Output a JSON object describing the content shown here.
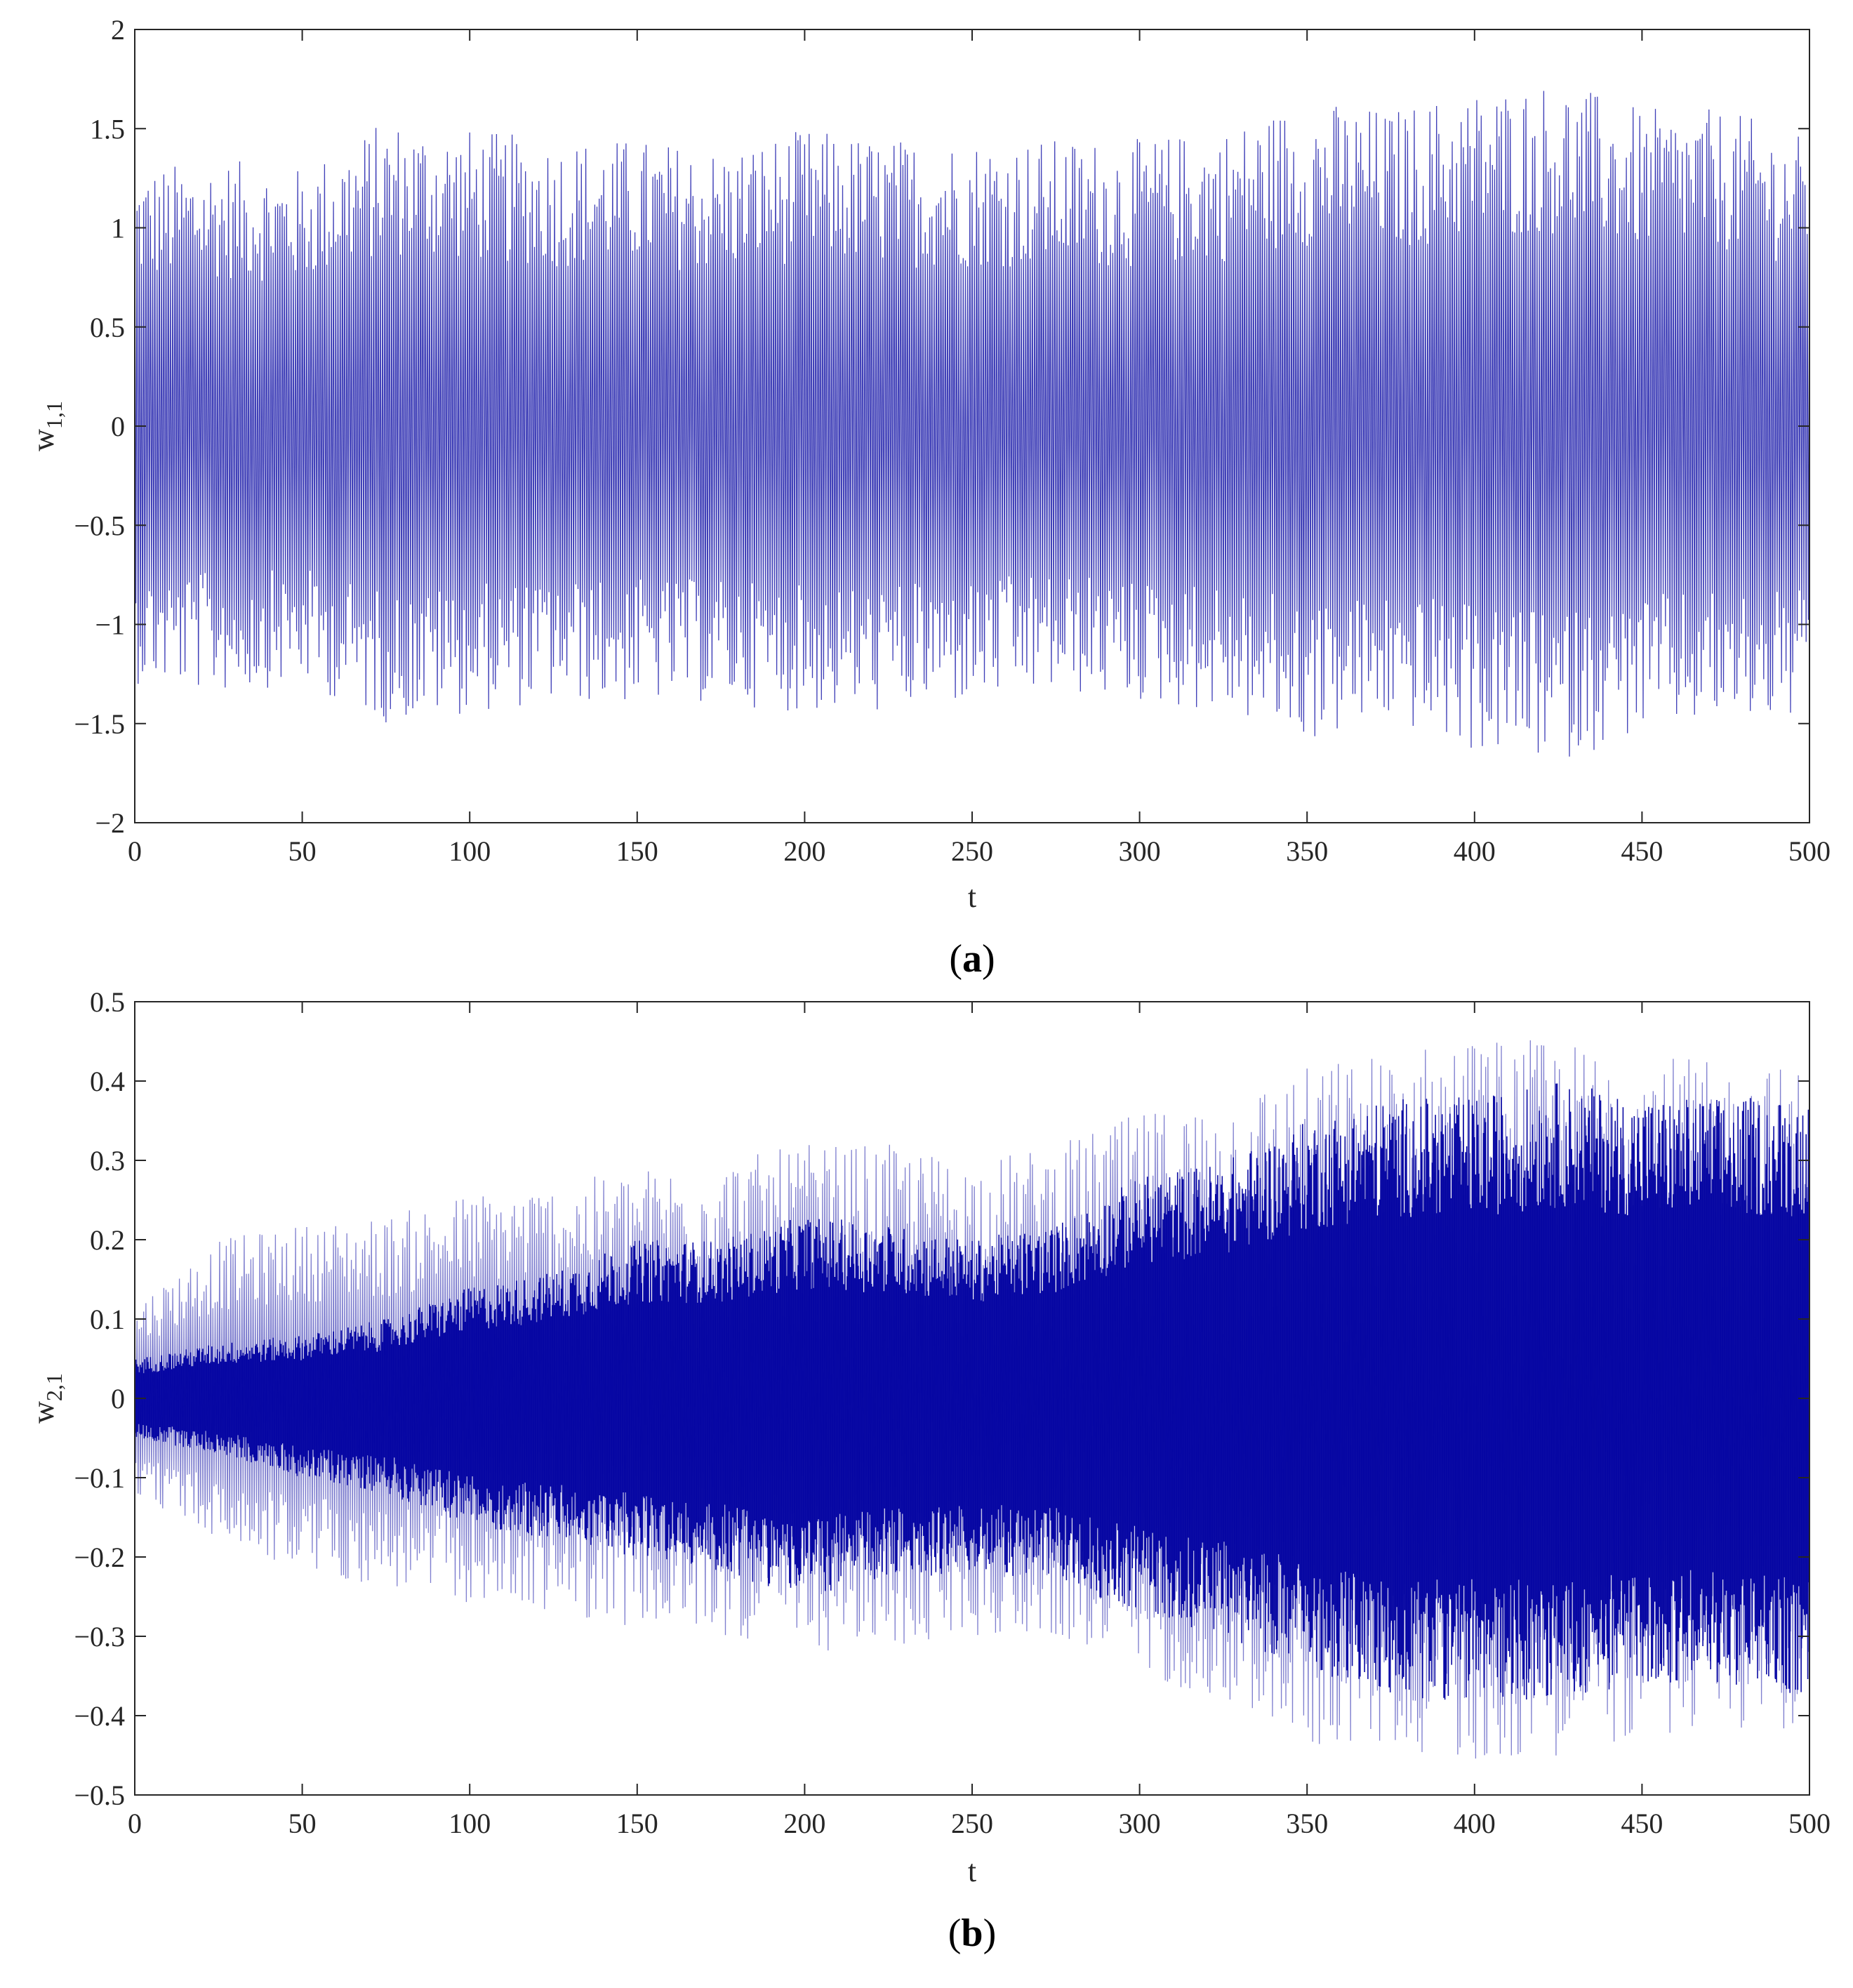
{
  "colors": {
    "series": "#0000a0",
    "axis": "#262626",
    "background": "#ffffff"
  },
  "chart_data": [
    {
      "type": "line",
      "panel_label": "a",
      "xlabel": "t",
      "ylabel": {
        "base": "w",
        "subscript": "1,1"
      },
      "xlim": [
        0,
        500
      ],
      "ylim": [
        -2,
        2
      ],
      "xticks": [
        0,
        50,
        100,
        150,
        200,
        250,
        300,
        350,
        400,
        450,
        500
      ],
      "yticks": [
        -2,
        -1.5,
        -1,
        -0.5,
        0,
        0.5,
        1,
        1.5,
        2
      ],
      "ytick_labels": [
        "−2",
        "−1.5",
        "−1",
        "−0.5",
        "0",
        "0.5",
        "1",
        "1.5",
        "2"
      ],
      "grid": false,
      "series": [
        {
          "description_t": [
            0,
            25,
            50,
            75,
            100,
            125,
            150,
            175,
            200,
            225,
            250,
            275,
            300,
            325,
            350,
            375,
            400,
            425,
            450,
            475,
            500
          ],
          "envelope_upper": [
            1.3,
            1.35,
            1.3,
            1.55,
            1.5,
            1.45,
            1.45,
            1.4,
            1.5,
            1.45,
            1.45,
            1.45,
            1.45,
            1.5,
            1.65,
            1.6,
            1.7,
            1.75,
            1.6,
            1.6,
            1.45
          ],
          "envelope_lower": [
            -1.3,
            -1.35,
            -1.3,
            -1.5,
            -1.45,
            -1.4,
            -1.4,
            -1.4,
            -1.45,
            -1.45,
            -1.4,
            -1.35,
            -1.4,
            -1.45,
            -1.6,
            -1.5,
            -1.65,
            -1.7,
            -1.55,
            -1.5,
            -1.5
          ]
        }
      ]
    },
    {
      "type": "line",
      "panel_label": "b",
      "xlabel": "t",
      "ylabel": {
        "base": "w",
        "subscript": "2,1"
      },
      "xlim": [
        0,
        500
      ],
      "ylim": [
        -0.5,
        0.5
      ],
      "xticks": [
        0,
        50,
        100,
        150,
        200,
        250,
        300,
        350,
        400,
        450,
        500
      ],
      "yticks": [
        -0.5,
        -0.4,
        -0.3,
        -0.2,
        -0.1,
        0,
        0.1,
        0.2,
        0.3,
        0.4,
        0.5
      ],
      "ytick_labels": [
        "−0.5",
        "−0.4",
        "−0.3",
        "−0.2",
        "−0.1",
        "0",
        "0.1",
        "0.2",
        "0.3",
        "0.4",
        "0.5"
      ],
      "grid": false,
      "series": [
        {
          "description_t": [
            0,
            25,
            50,
            75,
            100,
            125,
            150,
            175,
            200,
            225,
            250,
            275,
            300,
            325,
            350,
            375,
            400,
            425,
            450,
            475,
            500
          ],
          "envelope_upper": [
            0.12,
            0.2,
            0.22,
            0.23,
            0.26,
            0.27,
            0.29,
            0.3,
            0.32,
            0.32,
            0.3,
            0.32,
            0.36,
            0.38,
            0.42,
            0.44,
            0.46,
            0.45,
            0.44,
            0.42,
            0.42
          ],
          "envelope_lower": [
            -0.12,
            -0.18,
            -0.22,
            -0.24,
            -0.26,
            -0.27,
            -0.29,
            -0.3,
            -0.32,
            -0.32,
            -0.3,
            -0.3,
            -0.35,
            -0.38,
            -0.44,
            -0.44,
            -0.46,
            -0.45,
            -0.43,
            -0.42,
            -0.42
          ],
          "dense_core_upper": [
            0.05,
            0.07,
            0.08,
            0.1,
            0.14,
            0.16,
            0.2,
            0.2,
            0.23,
            0.22,
            0.2,
            0.22,
            0.28,
            0.3,
            0.35,
            0.38,
            0.38,
            0.4,
            0.38,
            0.38,
            0.38
          ],
          "dense_core_lower": [
            -0.05,
            -0.07,
            -0.1,
            -0.12,
            -0.16,
            -0.18,
            -0.2,
            -0.22,
            -0.25,
            -0.23,
            -0.22,
            -0.23,
            -0.27,
            -0.3,
            -0.34,
            -0.38,
            -0.38,
            -0.38,
            -0.36,
            -0.36,
            -0.38
          ]
        }
      ]
    }
  ]
}
